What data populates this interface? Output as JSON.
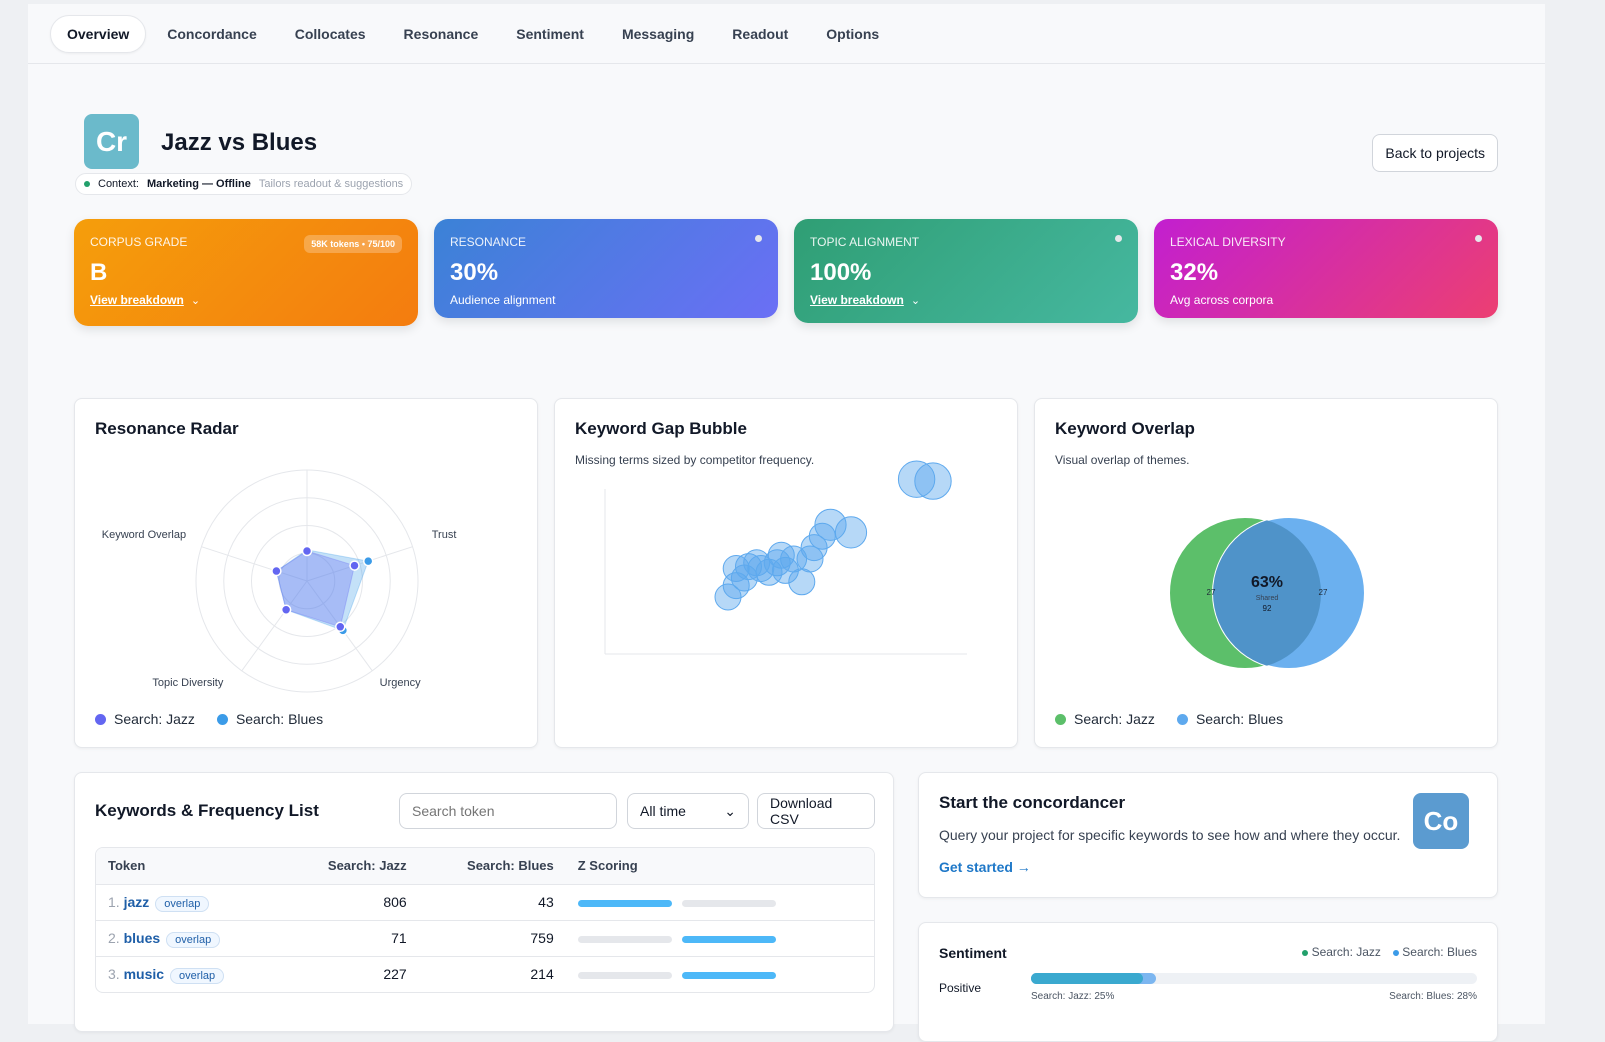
{
  "nav": {
    "tabs": [
      "Overview",
      "Concordance",
      "Collocates",
      "Resonance",
      "Sentiment",
      "Messaging",
      "Readout",
      "Options"
    ],
    "active": 0
  },
  "header": {
    "logo_text": "Cr",
    "title": "Jazz vs Blues",
    "context_label": "Context:",
    "context_value": "Marketing — Offline",
    "context_hint": "Tailors readout & suggestions",
    "back_button": "Back to projects"
  },
  "kpis": [
    {
      "label": "CORPUS GRADE",
      "value": "B",
      "badge": "58K tokens • 75/100",
      "link": "View breakdown",
      "colors": [
        "#f59e0b",
        "#f47c0f"
      ]
    },
    {
      "label": "RESONANCE",
      "value": "30%",
      "sub": "Audience alignment",
      "colors": [
        "#3b82d6",
        "#6b6ff5"
      ]
    },
    {
      "label": "TOPIC ALIGNMENT",
      "value": "100%",
      "link": "View breakdown",
      "colors": [
        "#2f9e74",
        "#46b8a0"
      ]
    },
    {
      "label": "LEXICAL DIVERSITY",
      "value": "32%",
      "sub": "Avg across corpora",
      "colors": [
        "#c21fd0",
        "#ec3f72"
      ]
    }
  ],
  "radar": {
    "title": "Resonance Radar",
    "axes": [
      "",
      "Trust",
      "Urgency",
      "Topic Diversity",
      "Keyword Overlap"
    ],
    "series": [
      {
        "name": "Search: Jazz",
        "color": "#6366f1",
        "values": [
          27,
          45,
          51,
          32,
          29
        ]
      },
      {
        "name": "Search: Blues",
        "color": "#3b9be8",
        "values": [
          28,
          58,
          55,
          32,
          29
        ]
      }
    ],
    "max": 100
  },
  "bubble": {
    "title": "Keyword Gap Bubble",
    "desc": "Missing terms sized by competitor frequency.",
    "points": [
      [
        50,
        30,
        5
      ],
      [
        52,
        36,
        5
      ],
      [
        54,
        40,
        5
      ],
      [
        55,
        46,
        5
      ],
      [
        58,
        45,
        5
      ],
      [
        60,
        43,
        5
      ],
      [
        62,
        48,
        5
      ],
      [
        64,
        44,
        5
      ],
      [
        66,
        50,
        5
      ],
      [
        68,
        38,
        5
      ],
      [
        70,
        50,
        5
      ],
      [
        71,
        56,
        5
      ],
      [
        73,
        62,
        5
      ],
      [
        75,
        68,
        6
      ],
      [
        80,
        64,
        6
      ],
      [
        96,
        92,
        7
      ],
      [
        100,
        91,
        7
      ],
      [
        52,
        45,
        5
      ],
      [
        57,
        48,
        5
      ],
      [
        63,
        52,
        5
      ]
    ]
  },
  "venn": {
    "title": "Keyword Overlap",
    "desc": "Visual overlap of themes.",
    "percent": "63%",
    "shared_label": "Shared",
    "shared": "92",
    "left_only": "27",
    "right_only": "27",
    "series": [
      {
        "name": "Search: Jazz",
        "color": "#5cbf6a"
      },
      {
        "name": "Search: Blues",
        "color": "#5ea9ee"
      }
    ]
  },
  "keywords": {
    "title": "Keywords & Frequency List",
    "search_placeholder": "Search token",
    "range": "All time",
    "download": "Download CSV",
    "columns": [
      "Token",
      "Search: Jazz",
      "Search: Blues",
      "Z Scoring"
    ],
    "rows": [
      {
        "idx": "1.",
        "token": "jazz",
        "tag": "overlap",
        "jazz": "806",
        "blues": "43",
        "z": [
          1,
          0
        ]
      },
      {
        "idx": "2.",
        "token": "blues",
        "tag": "overlap",
        "jazz": "71",
        "blues": "759",
        "z": [
          0,
          1
        ]
      },
      {
        "idx": "3.",
        "token": "music",
        "tag": "overlap",
        "jazz": "227",
        "blues": "214",
        "z": [
          0,
          1
        ]
      }
    ]
  },
  "concord": {
    "title": "Start the concordancer",
    "text": "Query your project for specific keywords to see how and where they occur.",
    "link": "Get started →",
    "logo_text": "Co"
  },
  "sentiment": {
    "title": "Sentiment",
    "legend": [
      "Search: Jazz",
      "Search: Blues"
    ],
    "row_label": "Positive",
    "jazz_label": "Search: Jazz: 25%",
    "blues_label": "Search: Blues: 28%",
    "jazz": 25,
    "blues": 28
  }
}
